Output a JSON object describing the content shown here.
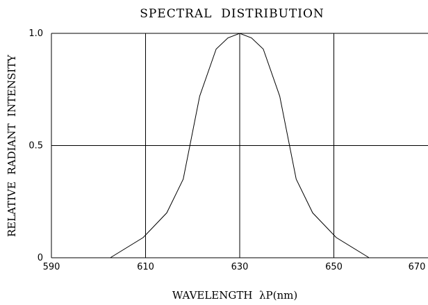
{
  "chart_data": {
    "type": "line",
    "title": "SPECTRAL  DISTRIBUTION",
    "xlabel": "WAVELENGTH  λP(nm)",
    "ylabel": "RELATIVE  RADIANT  INTENSITY",
    "xlim": [
      590,
      670
    ],
    "ylim": [
      0,
      1.0
    ],
    "x_ticks": [
      590,
      610,
      630,
      650,
      670
    ],
    "x_tick_labels": [
      "590",
      "610",
      "630",
      "650",
      "670"
    ],
    "y_ticks": [
      0,
      0.5,
      1.0
    ],
    "y_tick_labels": [
      "0",
      "0.5",
      "1.0"
    ],
    "grid": true,
    "series": [
      {
        "x": [
          602.5,
          609.5,
          614.5,
          618,
          621.5,
          625,
          627.5,
          630,
          632.5,
          635,
          638.5,
          642,
          645.5,
          650.5,
          657.5
        ],
        "y": [
          0,
          0.09,
          0.2,
          0.35,
          0.72,
          0.93,
          0.98,
          1.0,
          0.98,
          0.93,
          0.72,
          0.35,
          0.2,
          0.09,
          0
        ]
      }
    ]
  }
}
